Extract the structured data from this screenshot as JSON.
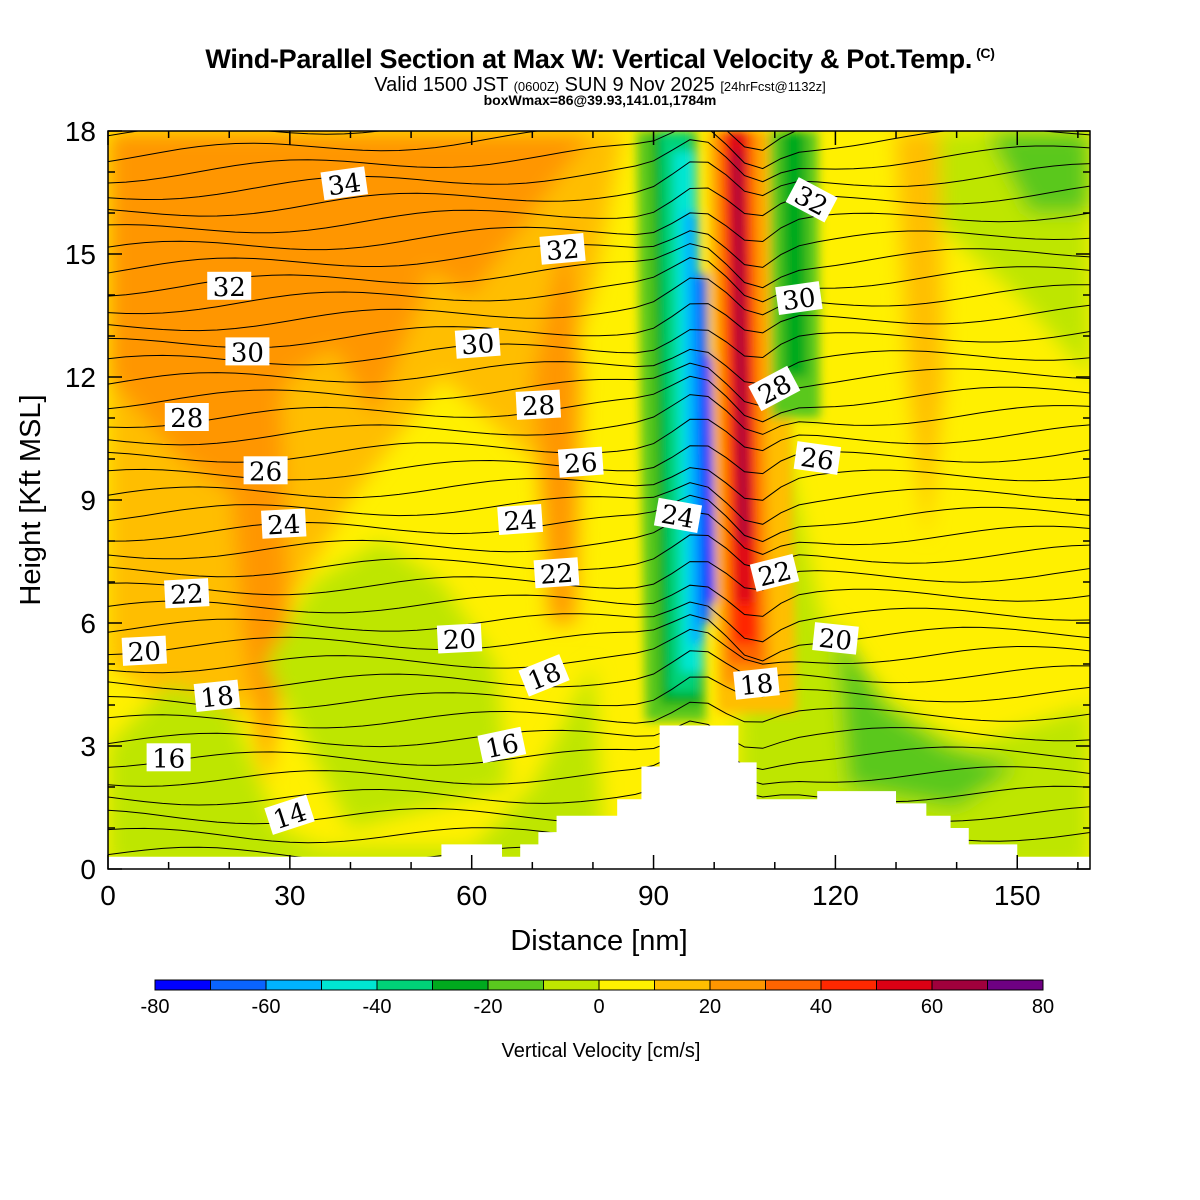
{
  "header": {
    "title": "Wind-Parallel Section at Max W: Vertical Velocity & Pot.Temp.",
    "copyright": "(C)",
    "valid_main": "Valid 1500 JST",
    "valid_utc": "(0600Z)",
    "valid_date": "SUN 9 Nov 2025",
    "forecast": "[24hrFcst@1132z]",
    "box_info": "boxWmax=86@39.93,141.01,1784m"
  },
  "chart_data": {
    "type": "heatmap",
    "title": "Wind-Parallel Section at Max W: Vertical Velocity & Pot.Temp.",
    "xlabel": "Distance [nm]",
    "ylabel": "Height [Kft MSL]",
    "xlim": [
      0,
      162
    ],
    "ylim": [
      0,
      18
    ],
    "xticks": [
      0,
      30,
      60,
      90,
      120,
      150
    ],
    "yticks": [
      0,
      3,
      6,
      9,
      12,
      15,
      18
    ],
    "colorbar": {
      "label": "Vertical Velocity [cm/s]",
      "min": -80,
      "max": 80,
      "step": 10,
      "tick_labels": [
        -80,
        -60,
        -40,
        -20,
        0,
        20,
        40,
        60,
        80
      ],
      "colors": [
        "#0000ff",
        "#0a64ff",
        "#00b4ff",
        "#00e6d2",
        "#00d278",
        "#00aa1e",
        "#5ac81e",
        "#bee600",
        "#fff000",
        "#ffbe00",
        "#ff9600",
        "#ff6400",
        "#ff2800",
        "#dc0014",
        "#a0003c",
        "#6e0082"
      ]
    },
    "terrain_profile": {
      "x_nm": [
        0,
        55,
        55,
        65,
        65,
        68,
        68,
        71,
        71,
        74,
        74,
        84,
        84,
        88,
        88,
        91,
        91,
        104,
        104,
        107,
        107,
        117,
        117,
        130,
        130,
        135,
        135,
        139,
        139,
        142,
        142,
        150,
        150,
        162
      ],
      "height_kft": [
        0.3,
        0.3,
        0.6,
        0.6,
        0.3,
        0.3,
        0.6,
        0.6,
        0.9,
        0.9,
        1.3,
        1.3,
        1.7,
        1.7,
        2.5,
        2.5,
        3.5,
        3.5,
        2.6,
        2.6,
        1.7,
        1.7,
        1.9,
        1.9,
        1.6,
        1.6,
        1.3,
        1.3,
        1.0,
        1.0,
        0.6,
        0.6,
        0.3,
        0.3
      ]
    },
    "velocity_features": [
      {
        "name": "downdraft-core",
        "x_nm": 100,
        "height_kft": [
          4,
          16
        ],
        "value_cm_s": -80
      },
      {
        "name": "updraft-core",
        "x_nm": 106,
        "height_kft": [
          5,
          18
        ],
        "value_cm_s": 70
      },
      {
        "name": "sinking-band-east",
        "x_nm": 116,
        "height_kft": [
          11,
          18
        ],
        "value_cm_s": -20
      }
    ],
    "theta_contour_labels": [
      {
        "value": "34",
        "x_nm": 39,
        "height_kft": 16.7,
        "angle": -8
      },
      {
        "value": "32",
        "x_nm": 20,
        "height_kft": 14.2,
        "angle": 0
      },
      {
        "value": "32",
        "x_nm": 75,
        "height_kft": 15.1,
        "angle": -5
      },
      {
        "value": "32",
        "x_nm": 116,
        "height_kft": 16.3,
        "angle": 28
      },
      {
        "value": "30",
        "x_nm": 23,
        "height_kft": 12.6,
        "angle": 0
      },
      {
        "value": "30",
        "x_nm": 61,
        "height_kft": 12.8,
        "angle": -4
      },
      {
        "value": "30",
        "x_nm": 114,
        "height_kft": 13.9,
        "angle": -8
      },
      {
        "value": "28",
        "x_nm": 13,
        "height_kft": 11.0,
        "angle": 0
      },
      {
        "value": "28",
        "x_nm": 71,
        "height_kft": 11.3,
        "angle": -3
      },
      {
        "value": "28",
        "x_nm": 110,
        "height_kft": 11.7,
        "angle": -28
      },
      {
        "value": "26",
        "x_nm": 26,
        "height_kft": 9.7,
        "angle": 0
      },
      {
        "value": "26",
        "x_nm": 78,
        "height_kft": 9.9,
        "angle": -4
      },
      {
        "value": "26",
        "x_nm": 117,
        "height_kft": 10.0,
        "angle": 8
      },
      {
        "value": "24",
        "x_nm": 29,
        "height_kft": 8.4,
        "angle": -3
      },
      {
        "value": "24",
        "x_nm": 68,
        "height_kft": 8.5,
        "angle": -4
      },
      {
        "value": "24",
        "x_nm": 94,
        "height_kft": 8.6,
        "angle": 10
      },
      {
        "value": "22",
        "x_nm": 13,
        "height_kft": 6.7,
        "angle": -3
      },
      {
        "value": "22",
        "x_nm": 74,
        "height_kft": 7.2,
        "angle": -4
      },
      {
        "value": "22",
        "x_nm": 110,
        "height_kft": 7.2,
        "angle": -14
      },
      {
        "value": "20",
        "x_nm": 6,
        "height_kft": 5.3,
        "angle": -3
      },
      {
        "value": "20",
        "x_nm": 58,
        "height_kft": 5.6,
        "angle": -3
      },
      {
        "value": "20",
        "x_nm": 120,
        "height_kft": 5.6,
        "angle": 6
      },
      {
        "value": "18",
        "x_nm": 18,
        "height_kft": 4.2,
        "angle": -6
      },
      {
        "value": "18",
        "x_nm": 72,
        "height_kft": 4.7,
        "angle": -22
      },
      {
        "value": "18",
        "x_nm": 107,
        "height_kft": 4.5,
        "angle": -6
      },
      {
        "value": "16",
        "x_nm": 10,
        "height_kft": 2.7,
        "angle": 0
      },
      {
        "value": "16",
        "x_nm": 65,
        "height_kft": 3.0,
        "angle": -12
      },
      {
        "value": "14",
        "x_nm": 30,
        "height_kft": 1.3,
        "angle": -18
      }
    ]
  }
}
